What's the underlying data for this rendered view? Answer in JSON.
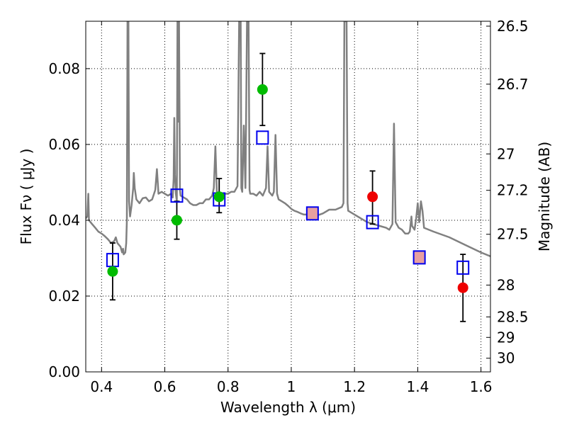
{
  "chart_data": {
    "type": "scatter",
    "title": "",
    "xlabel": "Wavelength  λ (μm)",
    "ylabel": "Flux  Fν  ( μJy )",
    "y2label": "Magnitude (AB)",
    "xlim": [
      0.35,
      1.63
    ],
    "ylim": [
      0.0,
      0.0925
    ],
    "grid": true,
    "x_ticks": [
      0.4,
      0.6,
      0.8,
      1.0,
      1.2,
      1.4,
      1.6
    ],
    "x_tick_labels": [
      "0.4",
      "0.6",
      "0.8",
      "1",
      "1.2",
      "1.4",
      "1.6"
    ],
    "y_ticks": [
      0.0,
      0.02,
      0.04,
      0.06,
      0.08
    ],
    "y_tick_labels": [
      "0.00",
      "0.02",
      "0.04",
      "0.06",
      "0.08"
    ],
    "y2_ticks": [
      {
        "label": "26.5",
        "flux": 0.0912
      },
      {
        "label": "26.7",
        "flux": 0.0759
      },
      {
        "label": "27",
        "flux": 0.0575
      },
      {
        "label": "27.2",
        "flux": 0.0479
      },
      {
        "label": "27.5",
        "flux": 0.0363
      },
      {
        "label": "28",
        "flux": 0.0229
      },
      {
        "label": "28.5",
        "flux": 0.0145
      },
      {
        "label": "29",
        "flux": 0.0091
      },
      {
        "label": "30",
        "flux": 0.0036
      }
    ],
    "colors": {
      "model": "#808080",
      "green": "#00bb00",
      "red": "#ee0000",
      "box": "#0000ee",
      "box_fill": "#e8a0a0",
      "grid": "#000000"
    },
    "series": [
      {
        "type": "line",
        "color": "#808080",
        "points": [
          [
            0.35,
            0.0405
          ],
          [
            0.355,
            0.041
          ],
          [
            0.358,
            0.047
          ],
          [
            0.36,
            0.04
          ],
          [
            0.37,
            0.039
          ],
          [
            0.38,
            0.038
          ],
          [
            0.39,
            0.037
          ],
          [
            0.4,
            0.0365
          ],
          [
            0.41,
            0.0358
          ],
          [
            0.42,
            0.035
          ],
          [
            0.43,
            0.034
          ],
          [
            0.44,
            0.0345
          ],
          [
            0.445,
            0.0355
          ],
          [
            0.45,
            0.034
          ],
          [
            0.46,
            0.033
          ],
          [
            0.465,
            0.0315
          ],
          [
            0.468,
            0.0325
          ],
          [
            0.47,
            0.031
          ],
          [
            0.475,
            0.0315
          ],
          [
            0.478,
            0.034
          ],
          [
            0.48,
            0.04
          ],
          [
            0.482,
            0.0925
          ],
          [
            0.485,
            0.0925
          ],
          [
            0.487,
            0.045
          ],
          [
            0.49,
            0.041
          ],
          [
            0.495,
            0.044
          ],
          [
            0.5,
            0.0485
          ],
          [
            0.502,
            0.0525
          ],
          [
            0.505,
            0.0485
          ],
          [
            0.51,
            0.0455
          ],
          [
            0.52,
            0.0445
          ],
          [
            0.53,
            0.0458
          ],
          [
            0.54,
            0.046
          ],
          [
            0.55,
            0.045
          ],
          [
            0.56,
            0.0455
          ],
          [
            0.57,
            0.048
          ],
          [
            0.575,
            0.0535
          ],
          [
            0.58,
            0.047
          ],
          [
            0.59,
            0.0475
          ],
          [
            0.6,
            0.047
          ],
          [
            0.61,
            0.0465
          ],
          [
            0.62,
            0.047
          ],
          [
            0.625,
            0.046
          ],
          [
            0.628,
            0.051
          ],
          [
            0.63,
            0.067
          ],
          [
            0.632,
            0.052
          ],
          [
            0.635,
            0.047
          ],
          [
            0.638,
            0.045
          ],
          [
            0.64,
            0.0925
          ],
          [
            0.643,
            0.066
          ],
          [
            0.645,
            0.0925
          ],
          [
            0.648,
            0.048
          ],
          [
            0.65,
            0.0465
          ],
          [
            0.66,
            0.046
          ],
          [
            0.67,
            0.0455
          ],
          [
            0.68,
            0.0445
          ],
          [
            0.69,
            0.044
          ],
          [
            0.7,
            0.044
          ],
          [
            0.71,
            0.0445
          ],
          [
            0.72,
            0.0445
          ],
          [
            0.73,
            0.0455
          ],
          [
            0.74,
            0.0455
          ],
          [
            0.75,
            0.0465
          ],
          [
            0.755,
            0.0485
          ],
          [
            0.76,
            0.0595
          ],
          [
            0.765,
            0.0465
          ],
          [
            0.77,
            0.0465
          ],
          [
            0.78,
            0.046
          ],
          [
            0.79,
            0.047
          ],
          [
            0.8,
            0.047
          ],
          [
            0.81,
            0.0475
          ],
          [
            0.82,
            0.0475
          ],
          [
            0.83,
            0.049
          ],
          [
            0.835,
            0.0925
          ],
          [
            0.84,
            0.0925
          ],
          [
            0.842,
            0.0485
          ],
          [
            0.845,
            0.0475
          ],
          [
            0.85,
            0.065
          ],
          [
            0.855,
            0.0485
          ],
          [
            0.86,
            0.0925
          ],
          [
            0.865,
            0.0925
          ],
          [
            0.868,
            0.048
          ],
          [
            0.87,
            0.047
          ],
          [
            0.88,
            0.047
          ],
          [
            0.89,
            0.0465
          ],
          [
            0.9,
            0.0475
          ],
          [
            0.91,
            0.0465
          ],
          [
            0.92,
            0.0485
          ],
          [
            0.925,
            0.0595
          ],
          [
            0.93,
            0.0475
          ],
          [
            0.94,
            0.0465
          ],
          [
            0.945,
            0.0475
          ],
          [
            0.95,
            0.0625
          ],
          [
            0.955,
            0.047
          ],
          [
            0.96,
            0.0455
          ],
          [
            0.97,
            0.045
          ],
          [
            0.98,
            0.0445
          ],
          [
            0.99,
            0.0438
          ],
          [
            1.0,
            0.043
          ],
          [
            1.01,
            0.0425
          ],
          [
            1.02,
            0.0422
          ],
          [
            1.03,
            0.0418
          ],
          [
            1.04,
            0.0415
          ],
          [
            1.05,
            0.0415
          ],
          [
            1.06,
            0.0412
          ],
          [
            1.07,
            0.0412
          ],
          [
            1.08,
            0.0412
          ],
          [
            1.09,
            0.0415
          ],
          [
            1.1,
            0.0418
          ],
          [
            1.12,
            0.0428
          ],
          [
            1.14,
            0.0428
          ],
          [
            1.16,
            0.0435
          ],
          [
            1.165,
            0.0445
          ],
          [
            1.168,
            0.0925
          ],
          [
            1.175,
            0.0925
          ],
          [
            1.178,
            0.0445
          ],
          [
            1.18,
            0.0425
          ],
          [
            1.2,
            0.0415
          ],
          [
            1.22,
            0.0405
          ],
          [
            1.24,
            0.0395
          ],
          [
            1.26,
            0.039
          ],
          [
            1.28,
            0.0385
          ],
          [
            1.3,
            0.038
          ],
          [
            1.31,
            0.0375
          ],
          [
            1.32,
            0.039
          ],
          [
            1.325,
            0.0655
          ],
          [
            1.33,
            0.0395
          ],
          [
            1.34,
            0.038
          ],
          [
            1.35,
            0.0375
          ],
          [
            1.36,
            0.0365
          ],
          [
            1.37,
            0.0365
          ],
          [
            1.375,
            0.037
          ],
          [
            1.38,
            0.041
          ],
          [
            1.382,
            0.0385
          ],
          [
            1.39,
            0.0375
          ],
          [
            1.395,
            0.0405
          ],
          [
            1.4,
            0.0445
          ],
          [
            1.405,
            0.0395
          ],
          [
            1.41,
            0.045
          ],
          [
            1.415,
            0.0425
          ],
          [
            1.42,
            0.038
          ],
          [
            1.45,
            0.037
          ],
          [
            1.5,
            0.0355
          ],
          [
            1.55,
            0.0335
          ],
          [
            1.6,
            0.0315
          ],
          [
            1.63,
            0.0305
          ]
        ]
      },
      {
        "type": "points",
        "name": "green",
        "color": "#00bb00",
        "points": [
          {
            "x": 0.435,
            "y": 0.0265,
            "yerr_low": 0.019,
            "yerr_high": 0.034
          },
          {
            "x": 0.638,
            "y": 0.04,
            "yerr_low": 0.035,
            "yerr_high": 0.045
          },
          {
            "x": 0.772,
            "y": 0.0462,
            "yerr_low": 0.042,
            "yerr_high": 0.051
          },
          {
            "x": 0.909,
            "y": 0.0745,
            "yerr_low": 0.065,
            "yerr_high": 0.084
          }
        ]
      },
      {
        "type": "points",
        "name": "red",
        "color": "#ee0000",
        "points": [
          {
            "x": 1.257,
            "y": 0.0462,
            "yerr_low": 0.039,
            "yerr_high": 0.053
          },
          {
            "x": 1.543,
            "y": 0.0222,
            "yerr_low": 0.0133,
            "yerr_high": 0.031
          }
        ]
      },
      {
        "type": "squares",
        "name": "model-bands",
        "color": "#0000ee",
        "points": [
          {
            "x": 0.435,
            "y": 0.0295
          },
          {
            "x": 0.638,
            "y": 0.0465
          },
          {
            "x": 0.772,
            "y": 0.0455
          },
          {
            "x": 0.909,
            "y": 0.0618
          },
          {
            "x": 1.067,
            "y": 0.0418,
            "filled": true
          },
          {
            "x": 1.257,
            "y": 0.0395
          },
          {
            "x": 1.405,
            "y": 0.0302,
            "filled": true
          },
          {
            "x": 1.543,
            "y": 0.0275
          }
        ]
      }
    ]
  }
}
